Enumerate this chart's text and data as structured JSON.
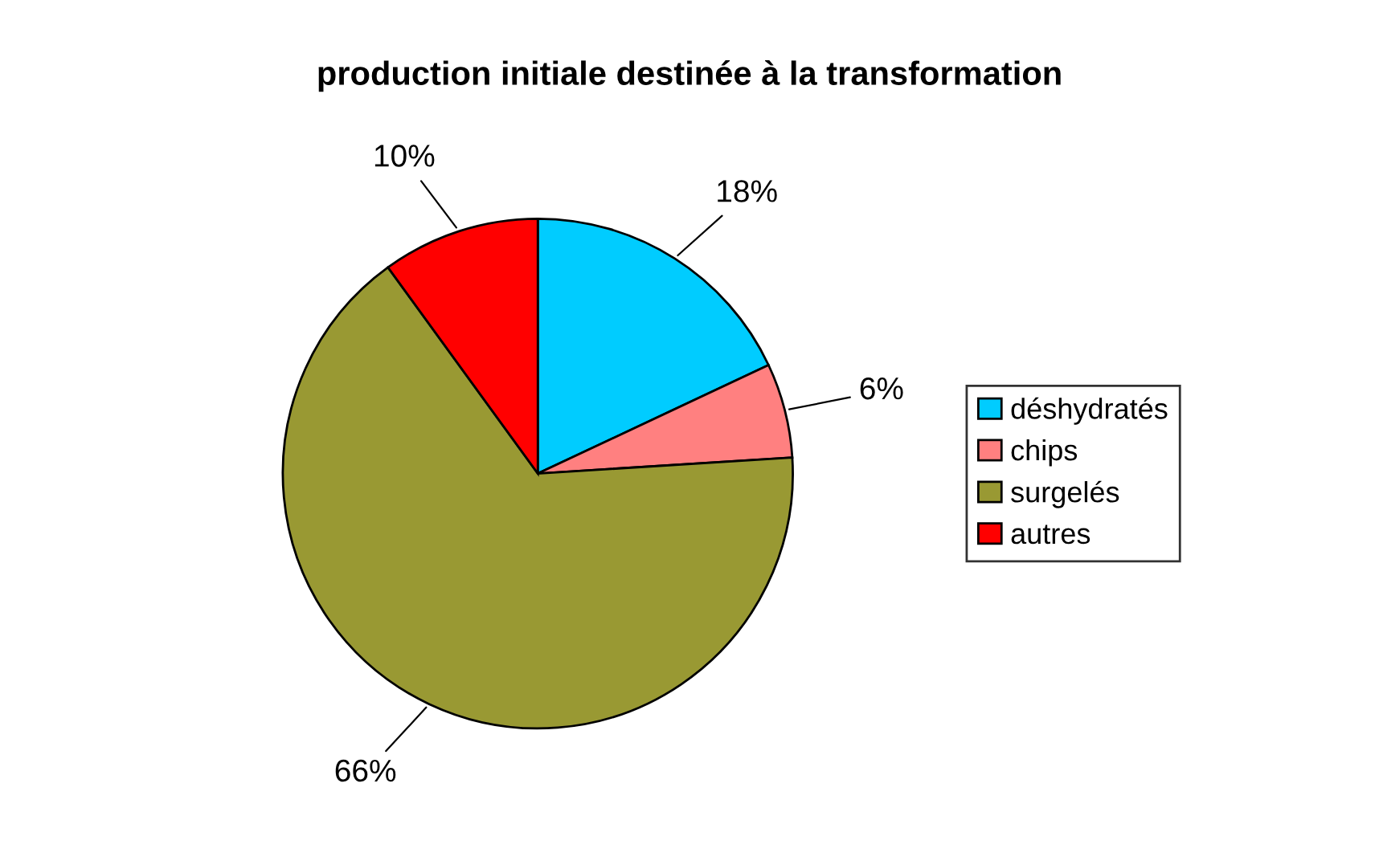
{
  "chart_data": {
    "type": "pie",
    "title": "production initiale destinée à la transformation",
    "categories": [
      "déshydratés",
      "chips",
      "surgelés",
      "autres"
    ],
    "values": [
      18,
      6,
      66,
      10
    ],
    "colors": [
      "#00ccff",
      "#ff8080",
      "#999933",
      "#ff0000"
    ],
    "value_labels": [
      "18%",
      "6%",
      "66%",
      "10%"
    ],
    "legend": "right"
  }
}
